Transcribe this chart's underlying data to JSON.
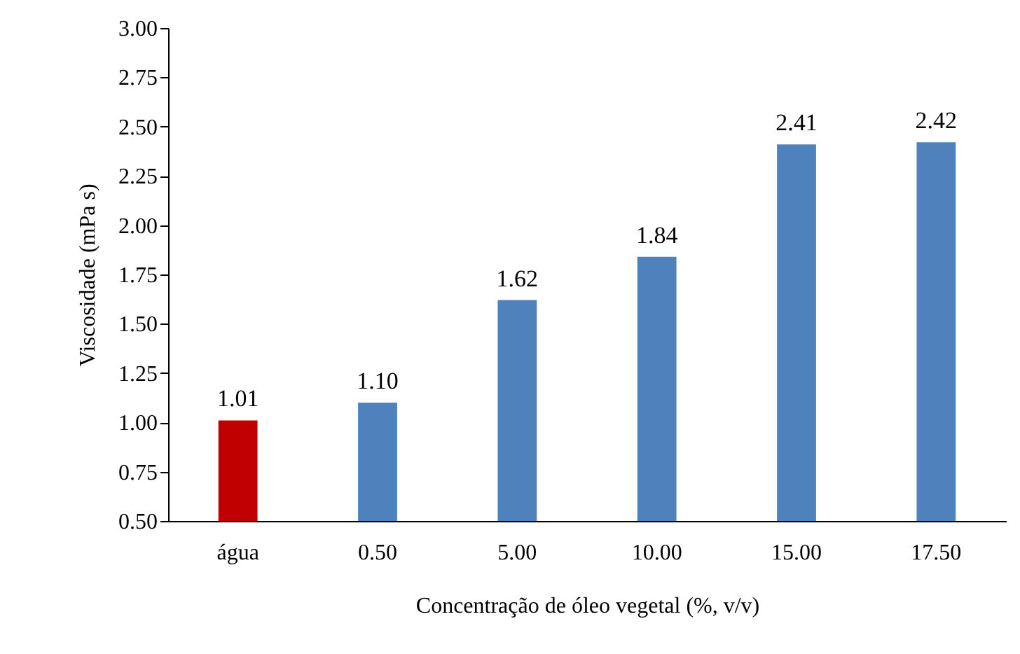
{
  "chart_data": {
    "type": "bar",
    "xlabel": "Concentração de óleo vegetal (%, v/v)",
    "ylabel": "Viscosidade (mPa s)",
    "categories": [
      "água",
      "0.50",
      "5.00",
      "10.00",
      "15.00",
      "17.50"
    ],
    "values": [
      1.01,
      1.1,
      1.62,
      1.84,
      2.41,
      2.42
    ],
    "colors": [
      "#c00000",
      "#4f81bd",
      "#4f81bd",
      "#4f81bd",
      "#4f81bd",
      "#4f81bd"
    ],
    "value_labels": [
      "1.01",
      "1.10",
      "1.62",
      "1.84",
      "2.41",
      "2.42"
    ],
    "ylim": [
      0.5,
      3.0
    ],
    "yticks": [
      {
        "value": 0.5,
        "label": "0.50"
      },
      {
        "value": 0.75,
        "label": "0.75"
      },
      {
        "value": 1.0,
        "label": "1.00"
      },
      {
        "value": 1.25,
        "label": "1.25"
      },
      {
        "value": 1.5,
        "label": "1.50"
      },
      {
        "value": 1.75,
        "label": "1.75"
      },
      {
        "value": 2.0,
        "label": "2.00"
      },
      {
        "value": 2.25,
        "label": "2.25"
      },
      {
        "value": 2.5,
        "label": "2.50"
      },
      {
        "value": 2.75,
        "label": "2.75"
      },
      {
        "value": 3.0,
        "label": "3.00"
      }
    ],
    "grid": false
  }
}
